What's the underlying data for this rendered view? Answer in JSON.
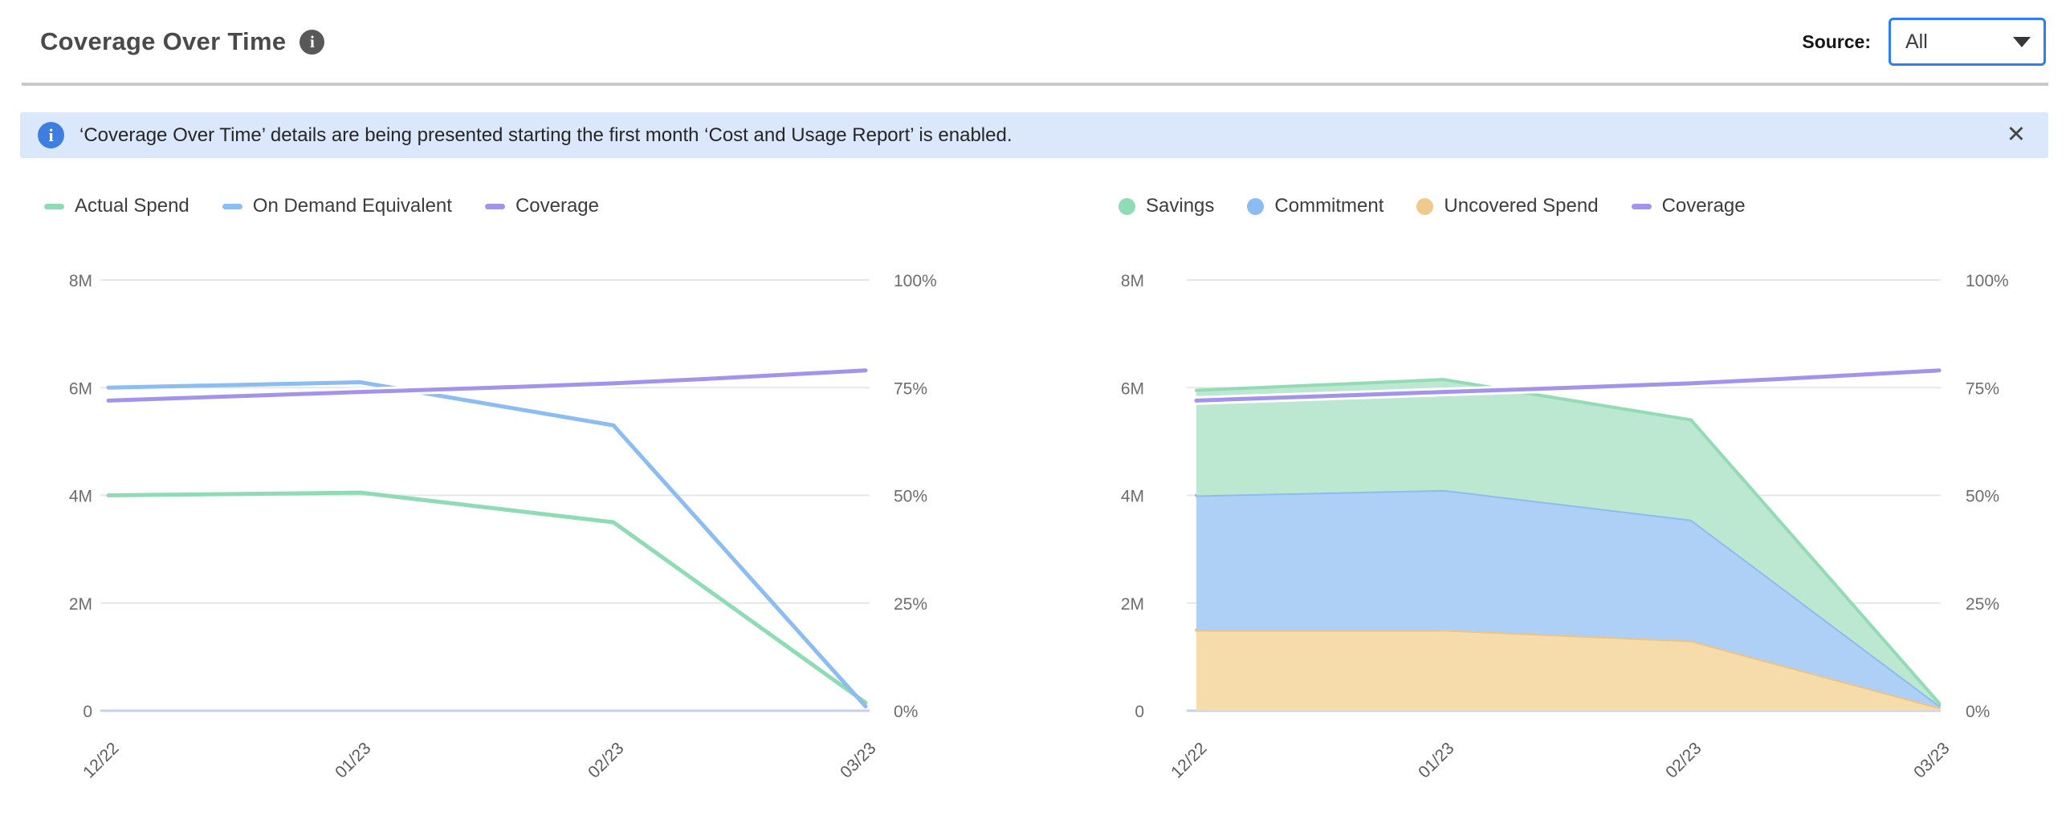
{
  "header": {
    "title": "Coverage Over Time",
    "info_glyph": "i",
    "source_label": "Source:",
    "source_value": "All"
  },
  "banner": {
    "info_glyph": "i",
    "text": "‘Coverage Over Time’ details are being presented starting the first month ‘Cost and Usage Report’ is enabled.",
    "close_label": "✕"
  },
  "palette": {
    "green_line": "#8edbb6",
    "blue_line": "#8bbcf2",
    "purple_line": "#a393ea",
    "savings_fill": "#bce7d0",
    "commitment_fill": "#aed0f7",
    "uncovered_fill": "#f5dcaa",
    "grid": "#e7e7e7",
    "baseline": "#c5cff0",
    "axis_text": "#6d6d6d",
    "xlabel_text": "#5a5a5a",
    "banner_bg": "#dbe8fb",
    "banner_icon_bg": "#3d7ee0",
    "dropdown_border": "#2e7df5",
    "divider": "#c9c9c9"
  },
  "chart_data": [
    {
      "type": "line",
      "title": "",
      "categories": [
        "12/22",
        "01/23",
        "02/23",
        "03/23"
      ],
      "left_axis": {
        "label": "",
        "ticks_top_down": [
          "8M",
          "6M",
          "4M",
          "2M",
          "0"
        ],
        "range_millions": [
          0,
          8
        ]
      },
      "right_axis": {
        "label": "",
        "ticks_top_down": [
          "100%",
          "75%",
          "50%",
          "25%",
          "0%"
        ],
        "range_percent": [
          0,
          100
        ]
      },
      "grid": true,
      "legend_position": "top-left",
      "series": [
        {
          "name": "Actual Spend",
          "kind": "line",
          "swatch": "line",
          "axis": "left",
          "color": "#8edbb6",
          "smooth": false,
          "halo": false,
          "values": [
            4.0,
            4.05,
            3.5,
            0.15
          ]
        },
        {
          "name": "On Demand Equivalent",
          "kind": "line",
          "swatch": "line",
          "axis": "left",
          "color": "#8bbcf2",
          "smooth": false,
          "halo": false,
          "values": [
            6.0,
            6.1,
            5.3,
            0.08
          ]
        },
        {
          "name": "Coverage",
          "kind": "line",
          "swatch": "line",
          "axis": "right",
          "color": "#a393ea",
          "smooth": true,
          "halo": true,
          "values": [
            72,
            74,
            76,
            79
          ]
        }
      ]
    },
    {
      "type": "area",
      "stacked": true,
      "title": "",
      "categories": [
        "12/22",
        "01/23",
        "02/23",
        "03/23"
      ],
      "left_axis": {
        "label": "",
        "ticks_top_down": [
          "8M",
          "6M",
          "4M",
          "2M",
          "0"
        ],
        "range_millions": [
          0,
          8
        ]
      },
      "right_axis": {
        "label": "",
        "ticks_top_down": [
          "100%",
          "75%",
          "50%",
          "25%",
          "0%"
        ],
        "range_percent": [
          0,
          100
        ]
      },
      "grid": true,
      "legend_position": "top-left",
      "stack_order": [
        "Uncovered Spend",
        "Commitment",
        "Savings"
      ],
      "series": [
        {
          "name": "Savings",
          "kind": "area",
          "swatch": "dot",
          "axis": "left",
          "color": "#92dbb4",
          "fill": "#bce7d0",
          "values": [
            1.95,
            2.05,
            1.85,
            0.04
          ]
        },
        {
          "name": "Commitment",
          "kind": "area",
          "swatch": "dot",
          "axis": "left",
          "color": "#8cbcf2",
          "fill": "#aed0f7",
          "values": [
            2.5,
            2.6,
            2.25,
            0.04
          ]
        },
        {
          "name": "Uncovered Spend",
          "kind": "area",
          "swatch": "dot",
          "axis": "left",
          "color": "#eec482",
          "fill": "#f5dcaa",
          "values": [
            1.5,
            1.5,
            1.3,
            0.06
          ]
        },
        {
          "name": "Coverage",
          "kind": "line",
          "swatch": "line",
          "axis": "right",
          "color": "#a393ea",
          "smooth": true,
          "halo": true,
          "values": [
            72,
            74,
            76,
            79
          ]
        }
      ]
    }
  ]
}
